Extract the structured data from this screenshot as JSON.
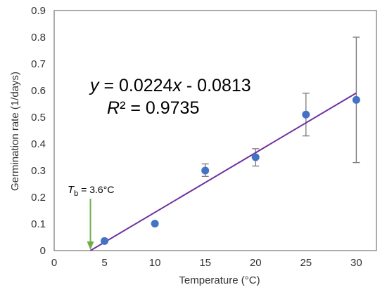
{
  "chart_data": {
    "type": "scatter",
    "xlabel": "Temperature (°C)",
    "ylabel": "Germination rate (1/days)",
    "xlim": [
      0,
      32
    ],
    "ylim": [
      0,
      0.9
    ],
    "xticks": [
      0,
      5,
      10,
      15,
      20,
      25,
      30
    ],
    "yticks": [
      0,
      0.1,
      0.2,
      0.3,
      0.4,
      0.5,
      0.6,
      0.7,
      0.8,
      0.9
    ],
    "grid": false,
    "points": [
      {
        "x": 5,
        "y": 0.036,
        "err_low": 0.036,
        "err_high": 0.036
      },
      {
        "x": 10,
        "y": 0.101,
        "err_low": 0.101,
        "err_high": 0.101
      },
      {
        "x": 15,
        "y": 0.3,
        "err_low": 0.278,
        "err_high": 0.325
      },
      {
        "x": 20,
        "y": 0.35,
        "err_low": 0.317,
        "err_high": 0.382
      },
      {
        "x": 25,
        "y": 0.51,
        "err_low": 0.43,
        "err_high": 0.59
      },
      {
        "x": 30,
        "y": 0.565,
        "err_low": 0.33,
        "err_high": 0.8
      }
    ],
    "trendline": {
      "slope": 0.0224,
      "intercept": -0.0813,
      "x_start": 3.6,
      "x_end": 30
    },
    "equation": {
      "y_italic": "y",
      "eq_part1": " = 0.0224",
      "x_italic": "x",
      "eq_part2": " - 0.0813",
      "r_italic": "R",
      "r2_rest": "² = 0.9735"
    },
    "annotation": {
      "t_italic": "T",
      "t_sub": "b",
      "t_rest": " = 3.6°C",
      "x": 3.6
    },
    "colors": {
      "points": "#4472C4",
      "trendline": "#7030A0",
      "arrow": "#70AD47",
      "error_bars": "#7F7F7F",
      "axes": "#595959"
    }
  }
}
